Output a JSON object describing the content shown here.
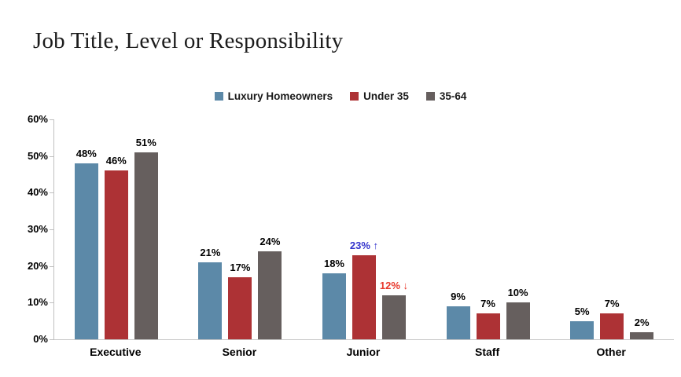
{
  "title": "Job Title, Level or Responsibility",
  "chart_data": {
    "type": "bar",
    "title": "Job Title, Level or Responsibility",
    "categories": [
      "Executive",
      "Senior",
      "Junior",
      "Staff",
      "Other"
    ],
    "series": [
      {
        "name": "Luxury Homeowners",
        "color": "#5C89A8",
        "values": [
          48,
          21,
          18,
          9,
          5
        ],
        "labels": [
          "48%",
          "21%",
          "18%",
          "9%",
          "5%"
        ],
        "label_colors": [
          "#000000",
          "#000000",
          "#000000",
          "#000000",
          "#000000"
        ]
      },
      {
        "name": "Under 35",
        "color": "#AD3235",
        "values": [
          46,
          17,
          23,
          7,
          7
        ],
        "labels": [
          "46%",
          "17%",
          "23% ↑",
          "7%",
          "7%"
        ],
        "label_colors": [
          "#000000",
          "#000000",
          "#3333CC",
          "#000000",
          "#000000"
        ]
      },
      {
        "name": "35-64",
        "color": "#665F5E",
        "values": [
          51,
          24,
          12,
          10,
          2
        ],
        "labels": [
          "51%",
          "24%",
          "12% ↓",
          "10%",
          "2%"
        ],
        "label_colors": [
          "#000000",
          "#000000",
          "#E8392D",
          "#000000",
          "#000000"
        ]
      }
    ],
    "xlabel": "",
    "ylabel": "",
    "ylim": [
      0,
      60
    ],
    "ytick_step": 10,
    "ytick_labels": [
      "0%",
      "10%",
      "20%",
      "30%",
      "40%",
      "50%",
      "60%"
    ],
    "grid": false,
    "legend_position": "top-center",
    "annotations": [
      {
        "category": "Junior",
        "series": "Under 35",
        "text": "23% ↑",
        "color": "#3333CC"
      },
      {
        "category": "Junior",
        "series": "35-64",
        "text": "12% ↓",
        "color": "#E8392D"
      }
    ]
  },
  "colors": {
    "axis": "#BFBFBF",
    "value_label": "#000000",
    "annotation_up": "#3333CC",
    "annotation_down": "#E8392D",
    "background": "#FFFFFF"
  }
}
